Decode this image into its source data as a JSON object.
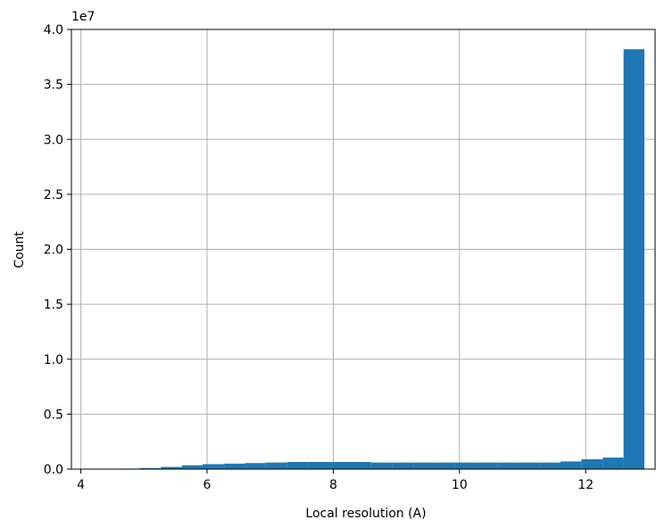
{
  "chart_data": {
    "type": "bar",
    "title": "",
    "xlabel": "Local resolution (A)",
    "ylabel": "Count",
    "y_multiplier_label": "1e7",
    "xlim": [
      3.85,
      13.1
    ],
    "ylim": [
      0,
      4.0
    ],
    "x_ticks": [
      4,
      6,
      8,
      10,
      12
    ],
    "x_tick_labels": [
      "4",
      "6",
      "8",
      "10",
      "12"
    ],
    "y_ticks": [
      0,
      0.5,
      1.0,
      1.5,
      2.0,
      2.5,
      3.0,
      3.5,
      4.0
    ],
    "y_tick_labels": [
      "0.0",
      "0.5",
      "1.0",
      "1.5",
      "2.0",
      "2.5",
      "3.0",
      "3.5",
      "4.0"
    ],
    "grid": true,
    "bar_color": "#1f77b4",
    "bins": [
      {
        "x0": 4.6,
        "x1": 4.93,
        "value": 0.005
      },
      {
        "x0": 4.93,
        "x1": 5.27,
        "value": 0.01
      },
      {
        "x0": 5.27,
        "x1": 5.6,
        "value": 0.02
      },
      {
        "x0": 5.6,
        "x1": 5.93,
        "value": 0.035
      },
      {
        "x0": 5.93,
        "x1": 6.27,
        "value": 0.045
      },
      {
        "x0": 6.27,
        "x1": 6.6,
        "value": 0.05
      },
      {
        "x0": 6.6,
        "x1": 6.93,
        "value": 0.055
      },
      {
        "x0": 6.93,
        "x1": 7.27,
        "value": 0.06
      },
      {
        "x0": 7.27,
        "x1": 7.6,
        "value": 0.065
      },
      {
        "x0": 7.6,
        "x1": 7.93,
        "value": 0.065
      },
      {
        "x0": 7.93,
        "x1": 8.27,
        "value": 0.065
      },
      {
        "x0": 8.27,
        "x1": 8.6,
        "value": 0.065
      },
      {
        "x0": 8.6,
        "x1": 8.93,
        "value": 0.06
      },
      {
        "x0": 8.93,
        "x1": 9.27,
        "value": 0.06
      },
      {
        "x0": 9.27,
        "x1": 9.6,
        "value": 0.06
      },
      {
        "x0": 9.6,
        "x1": 9.93,
        "value": 0.06
      },
      {
        "x0": 9.93,
        "x1": 10.27,
        "value": 0.06
      },
      {
        "x0": 10.27,
        "x1": 10.6,
        "value": 0.06
      },
      {
        "x0": 10.6,
        "x1": 10.93,
        "value": 0.06
      },
      {
        "x0": 10.93,
        "x1": 11.27,
        "value": 0.06
      },
      {
        "x0": 11.27,
        "x1": 11.6,
        "value": 0.06
      },
      {
        "x0": 11.6,
        "x1": 11.93,
        "value": 0.07
      },
      {
        "x0": 11.93,
        "x1": 12.27,
        "value": 0.09
      },
      {
        "x0": 12.27,
        "x1": 12.6,
        "value": 0.105
      },
      {
        "x0": 12.6,
        "x1": 12.93,
        "value": 3.82
      }
    ]
  }
}
